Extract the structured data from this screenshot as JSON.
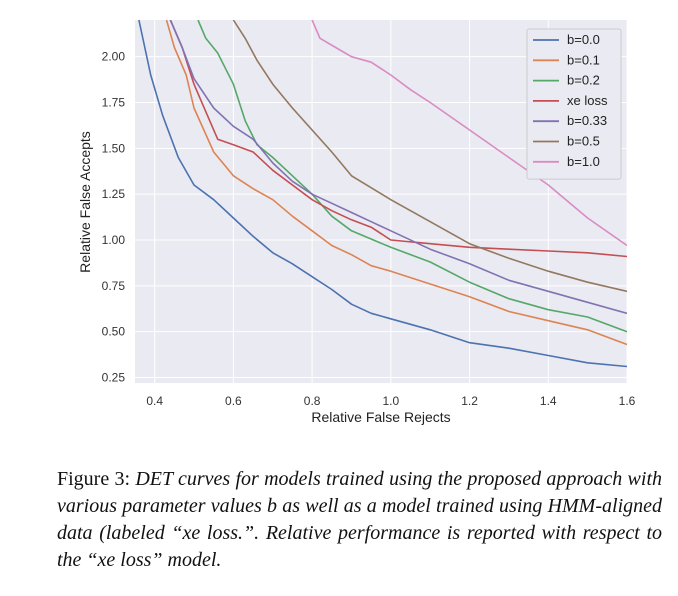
{
  "chart_data": {
    "type": "line",
    "xlabel": "Relative False Rejects",
    "ylabel": "Relative False Accepts",
    "xlim": [
      0.35,
      1.6
    ],
    "ylim": [
      0.22,
      2.2
    ],
    "x_ticks": [
      "0.4",
      "0.6",
      "0.8",
      "1.0",
      "1.2",
      "1.4",
      "1.6"
    ],
    "y_ticks": [
      "0.25",
      "0.50",
      "0.75",
      "1.00",
      "1.25",
      "1.50",
      "1.75",
      "2.00"
    ],
    "grid": true,
    "legend_position": "top-right",
    "series": [
      {
        "name": "b=0.0",
        "color": "#4c72b0",
        "x": [
          0.36,
          0.39,
          0.42,
          0.46,
          0.5,
          0.55,
          0.6,
          0.65,
          0.7,
          0.75,
          0.8,
          0.85,
          0.9,
          0.95,
          1.0,
          1.1,
          1.2,
          1.3,
          1.4,
          1.5,
          1.6
        ],
        "y": [
          2.2,
          1.9,
          1.68,
          1.45,
          1.3,
          1.22,
          1.12,
          1.02,
          0.93,
          0.87,
          0.8,
          0.73,
          0.65,
          0.6,
          0.57,
          0.51,
          0.44,
          0.41,
          0.37,
          0.33,
          0.31
        ]
      },
      {
        "name": "b=0.1",
        "color": "#dd8452",
        "x": [
          0.43,
          0.45,
          0.48,
          0.5,
          0.55,
          0.6,
          0.65,
          0.7,
          0.75,
          0.8,
          0.85,
          0.9,
          0.95,
          1.0,
          1.1,
          1.2,
          1.3,
          1.4,
          1.5,
          1.6
        ],
        "y": [
          2.2,
          2.05,
          1.9,
          1.72,
          1.48,
          1.35,
          1.28,
          1.22,
          1.13,
          1.05,
          0.97,
          0.92,
          0.86,
          0.83,
          0.76,
          0.69,
          0.61,
          0.56,
          0.51,
          0.43
        ]
      },
      {
        "name": "b=0.2",
        "color": "#55a868",
        "x": [
          0.51,
          0.53,
          0.56,
          0.6,
          0.63,
          0.66,
          0.7,
          0.75,
          0.8,
          0.85,
          0.9,
          1.0,
          1.1,
          1.2,
          1.3,
          1.4,
          1.5,
          1.6
        ],
        "y": [
          2.2,
          2.1,
          2.02,
          1.85,
          1.65,
          1.52,
          1.45,
          1.35,
          1.25,
          1.13,
          1.05,
          0.96,
          0.88,
          0.77,
          0.68,
          0.62,
          0.58,
          0.5
        ]
      },
      {
        "name": "xe loss",
        "color": "#c44e52",
        "x": [
          0.44,
          0.47,
          0.5,
          0.53,
          0.56,
          0.6,
          0.65,
          0.7,
          0.75,
          0.8,
          0.85,
          0.9,
          0.95,
          1.0,
          1.1,
          1.2,
          1.3,
          1.4,
          1.5,
          1.6
        ],
        "y": [
          2.2,
          2.05,
          1.85,
          1.7,
          1.55,
          1.52,
          1.48,
          1.38,
          1.3,
          1.22,
          1.16,
          1.11,
          1.07,
          1.0,
          0.98,
          0.96,
          0.95,
          0.94,
          0.93,
          0.91
        ]
      },
      {
        "name": "b=0.33",
        "color": "#8172b3",
        "x": [
          0.44,
          0.47,
          0.5,
          0.55,
          0.6,
          0.65,
          0.7,
          0.75,
          0.8,
          0.85,
          0.9,
          0.95,
          1.0,
          1.1,
          1.2,
          1.3,
          1.4,
          1.5,
          1.6
        ],
        "y": [
          2.2,
          2.05,
          1.88,
          1.72,
          1.62,
          1.55,
          1.42,
          1.32,
          1.25,
          1.2,
          1.15,
          1.1,
          1.05,
          0.95,
          0.87,
          0.78,
          0.72,
          0.66,
          0.6
        ]
      },
      {
        "name": "b=0.5",
        "color": "#937860",
        "x": [
          0.6,
          0.63,
          0.66,
          0.7,
          0.75,
          0.8,
          0.85,
          0.9,
          1.0,
          1.1,
          1.2,
          1.3,
          1.4,
          1.5,
          1.6
        ],
        "y": [
          2.2,
          2.1,
          1.98,
          1.85,
          1.72,
          1.6,
          1.48,
          1.35,
          1.22,
          1.1,
          0.98,
          0.9,
          0.83,
          0.77,
          0.72
        ]
      },
      {
        "name": "b=1.0",
        "color": "#da8bc3",
        "x": [
          0.8,
          0.82,
          0.86,
          0.9,
          0.95,
          1.0,
          1.05,
          1.1,
          1.2,
          1.3,
          1.4,
          1.5,
          1.6
        ],
        "y": [
          2.2,
          2.1,
          2.05,
          2.0,
          1.97,
          1.9,
          1.82,
          1.75,
          1.6,
          1.45,
          1.3,
          1.12,
          0.97
        ]
      }
    ]
  },
  "caption": {
    "prefix": "Figure 3:",
    "text": "DET curves for models trained using the proposed approach with various parameter values b as well as a model trained using HMM-aligned data (labeled “xe loss.”. Relative performance is reported with respect to the “xe loss” model."
  }
}
